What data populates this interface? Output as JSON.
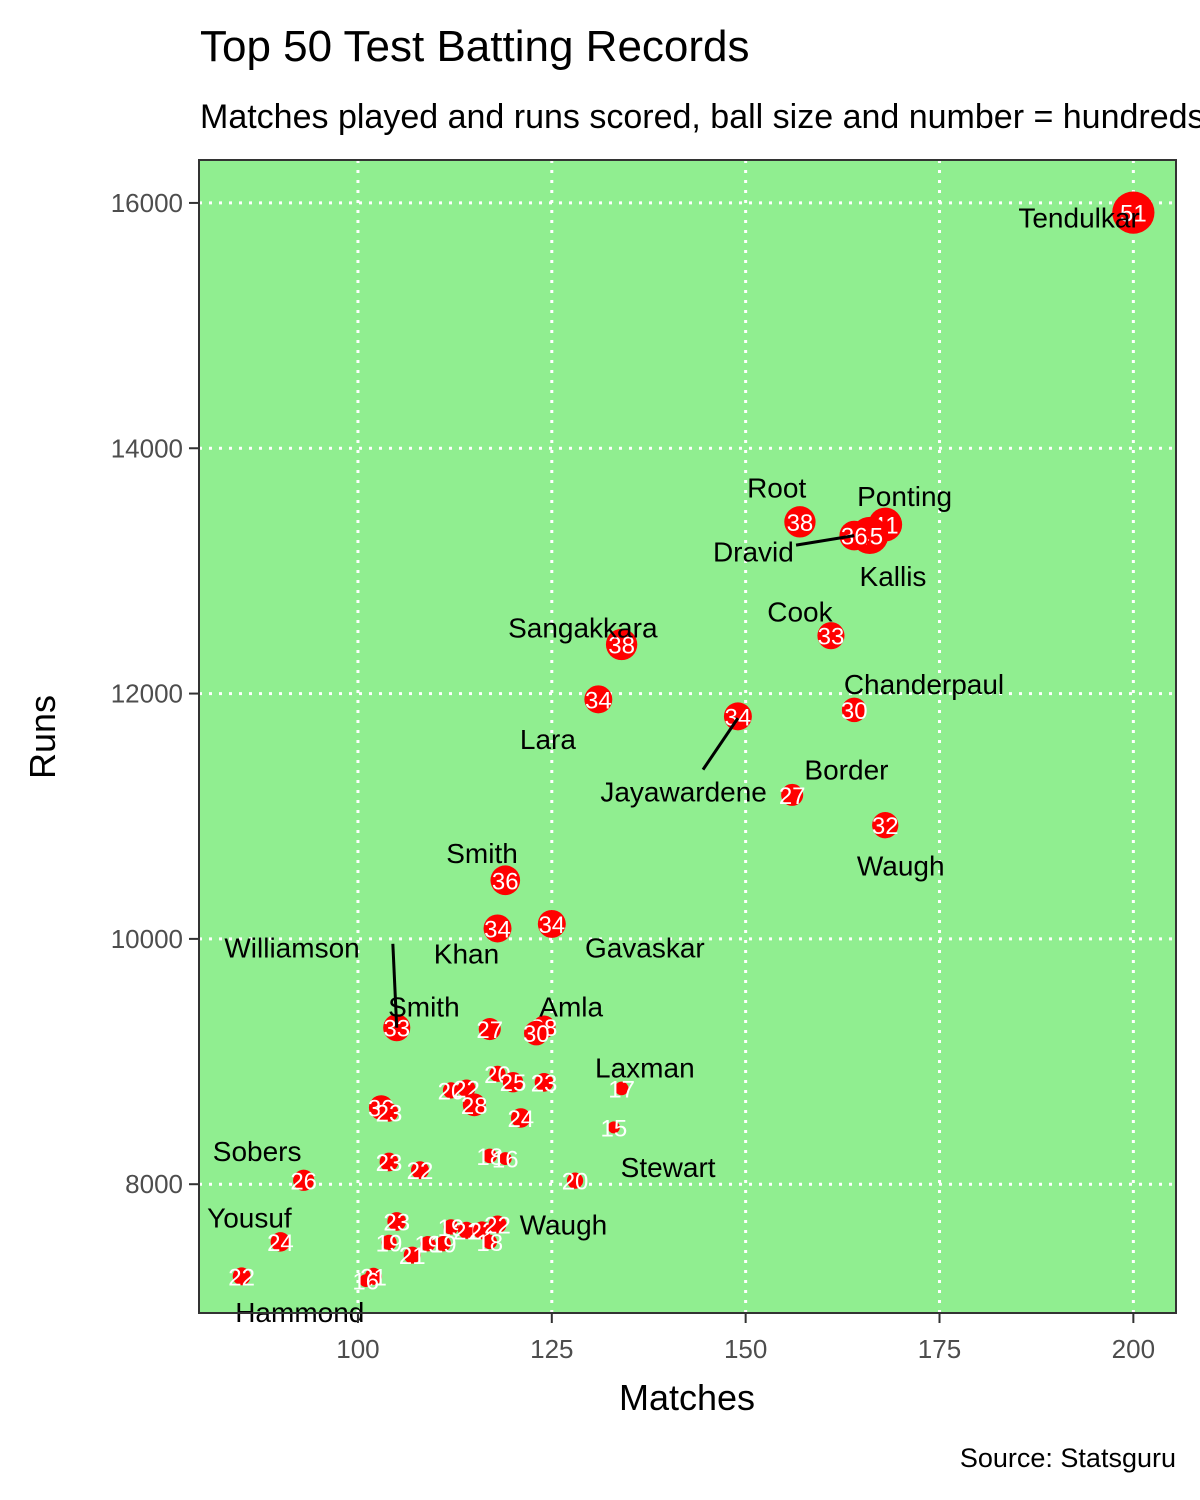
{
  "chart_data": {
    "type": "scatter",
    "title": "Top 50 Test Batting Records",
    "subtitle": "Matches played and runs scored, ball size and number = hundreds",
    "xlabel": "Matches",
    "ylabel": "Runs",
    "caption": "Source: Statsguru",
    "xlim": [
      79.5,
      205.5
    ],
    "ylim": [
      6950,
      16350
    ],
    "xticks": [
      100,
      125,
      150,
      175,
      200
    ],
    "yticks": [
      8000,
      10000,
      12000,
      14000,
      16000
    ],
    "grid": true,
    "colors": {
      "panel": "#90ee90",
      "point": "#ff0000",
      "point_label": "#ffffff",
      "grid": "#ffffff"
    },
    "points": [
      {
        "x": 200,
        "y": 15921,
        "hundreds": 51,
        "name": "Tendulkar"
      },
      {
        "x": 168,
        "y": 13378,
        "hundreds": 41,
        "name": "Ponting"
      },
      {
        "x": 166,
        "y": 13289,
        "hundreds": 45,
        "name": "Kallis"
      },
      {
        "x": 164,
        "y": 13288,
        "hundreds": 36,
        "name": "Dravid"
      },
      {
        "x": 157,
        "y": 13400,
        "hundreds": 38,
        "name": "Root"
      },
      {
        "x": 161,
        "y": 12472,
        "hundreds": 33,
        "name": "Cook"
      },
      {
        "x": 134,
        "y": 12400,
        "hundreds": 38,
        "name": "Sangakkara"
      },
      {
        "x": 131,
        "y": 11953,
        "hundreds": 34,
        "name": "Lara"
      },
      {
        "x": 164,
        "y": 11867,
        "hundreds": 30,
        "name": "Chanderpaul"
      },
      {
        "x": 149,
        "y": 11814,
        "hundreds": 34,
        "name": "Jayawardene"
      },
      {
        "x": 156,
        "y": 11174,
        "hundreds": 27,
        "name": "Border"
      },
      {
        "x": 168,
        "y": 10927,
        "hundreds": 32,
        "name": "Waugh"
      },
      {
        "x": 119,
        "y": 10478,
        "hundreds": 36,
        "name": "Smith"
      },
      {
        "x": 125,
        "y": 10122,
        "hundreds": 34,
        "name": "Gavaskar"
      },
      {
        "x": 118,
        "y": 10085,
        "hundreds": 34,
        "name": "Khan"
      },
      {
        "x": 105,
        "y": 9276,
        "hundreds": 33,
        "name": "Williamson"
      },
      {
        "x": 117,
        "y": 9265,
        "hundreds": 27,
        "name": "Smith"
      },
      {
        "x": 124,
        "y": 9282,
        "hundreds": 28,
        "name": "Amla"
      },
      {
        "x": 123,
        "y": 9232,
        "hundreds": 30,
        "name": ""
      },
      {
        "x": 134,
        "y": 8781,
        "hundreds": 17,
        "name": "Laxman"
      },
      {
        "x": 133,
        "y": 8463,
        "hundreds": 15,
        "name": "Stewart"
      },
      {
        "x": 118,
        "y": 8900,
        "hundreds": 20,
        "name": ""
      },
      {
        "x": 120,
        "y": 8832,
        "hundreds": 25,
        "name": ""
      },
      {
        "x": 124,
        "y": 8830,
        "hundreds": 23,
        "name": ""
      },
      {
        "x": 112,
        "y": 8765,
        "hundreds": 20,
        "name": ""
      },
      {
        "x": 114,
        "y": 8781,
        "hundreds": 22,
        "name": ""
      },
      {
        "x": 115,
        "y": 8647,
        "hundreds": 28,
        "name": ""
      },
      {
        "x": 121,
        "y": 8540,
        "hundreds": 24,
        "name": ""
      },
      {
        "x": 103,
        "y": 8625,
        "hundreds": 30,
        "name": ""
      },
      {
        "x": 104,
        "y": 8586,
        "hundreds": 23,
        "name": ""
      },
      {
        "x": 117,
        "y": 8231,
        "hundreds": 18,
        "name": ""
      },
      {
        "x": 119,
        "y": 8209,
        "hundreds": 16,
        "name": ""
      },
      {
        "x": 104,
        "y": 8181,
        "hundreds": 23,
        "name": ""
      },
      {
        "x": 108,
        "y": 8114,
        "hundreds": 22,
        "name": ""
      },
      {
        "x": 93,
        "y": 8032,
        "hundreds": 26,
        "name": "Sobers"
      },
      {
        "x": 128,
        "y": 8029,
        "hundreds": 20,
        "name": ""
      },
      {
        "x": 105,
        "y": 7696,
        "hundreds": 23,
        "name": ""
      },
      {
        "x": 112,
        "y": 7652,
        "hundreds": 19,
        "name": ""
      },
      {
        "x": 114,
        "y": 7624,
        "hundreds": 21,
        "name": ""
      },
      {
        "x": 116,
        "y": 7624,
        "hundreds": 22,
        "name": ""
      },
      {
        "x": 118,
        "y": 7672,
        "hundreds": 22,
        "name": "Waugh"
      },
      {
        "x": 90,
        "y": 7530,
        "hundreds": 24,
        "name": "Yousuf"
      },
      {
        "x": 104,
        "y": 7525,
        "hundreds": 19,
        "name": ""
      },
      {
        "x": 109,
        "y": 7515,
        "hundreds": 19,
        "name": ""
      },
      {
        "x": 111,
        "y": 7515,
        "hundreds": 19,
        "name": ""
      },
      {
        "x": 107,
        "y": 7422,
        "hundreds": 21,
        "name": ""
      },
      {
        "x": 117,
        "y": 7530,
        "hundreds": 18,
        "name": ""
      },
      {
        "x": 102,
        "y": 7249,
        "hundreds": 21,
        "name": ""
      },
      {
        "x": 101,
        "y": 7214,
        "hundreds": 16,
        "name": ""
      },
      {
        "x": 85,
        "y": 7249,
        "hundreds": 22,
        "name": "Hammond"
      }
    ],
    "label_positions": [
      {
        "name": "Tendulkar",
        "x": 193,
        "y": 15880,
        "anchor": "middle"
      },
      {
        "name": "Ponting",
        "x": 170.5,
        "y": 13610,
        "anchor": "middle"
      },
      {
        "name": "Kallis",
        "x": 169,
        "y": 12960,
        "anchor": "middle"
      },
      {
        "name": "Dravid",
        "x": 151,
        "y": 13160,
        "anchor": "middle",
        "seg": [
          156.5,
          13210,
          164,
          13288
        ]
      },
      {
        "name": "Root",
        "x": 154,
        "y": 13680,
        "anchor": "middle"
      },
      {
        "name": "Cook",
        "x": 157,
        "y": 12670,
        "anchor": "middle"
      },
      {
        "name": "Sangakkara",
        "x": 129,
        "y": 12540,
        "anchor": "middle"
      },
      {
        "name": "Lara",
        "x": 124.5,
        "y": 11630,
        "anchor": "middle"
      },
      {
        "name": "Chanderpaul",
        "x": 173,
        "y": 12080,
        "anchor": "middle"
      },
      {
        "name": "Jayawardene",
        "x": 142,
        "y": 11200,
        "anchor": "middle",
        "seg": [
          144.5,
          11380,
          149,
          11800
        ]
      },
      {
        "name": "Border",
        "x": 163,
        "y": 11380,
        "anchor": "middle"
      },
      {
        "name": "Waugh",
        "x": 170,
        "y": 10600,
        "anchor": "middle"
      },
      {
        "name": "Smith",
        "x": 116,
        "y": 10700,
        "anchor": "middle"
      },
      {
        "name": "Gavaskar",
        "x": 137,
        "y": 9930,
        "anchor": "middle"
      },
      {
        "name": "Khan",
        "x": 114,
        "y": 9880,
        "anchor": "middle"
      },
      {
        "name": "Williamson",
        "x": 91.5,
        "y": 9930,
        "anchor": "middle",
        "seg": [
          104.5,
          9960,
          105,
          9276
        ]
      },
      {
        "name": "Smith",
        "x": 108.5,
        "y": 9450,
        "anchor": "middle"
      },
      {
        "name": "Amla",
        "x": 127.5,
        "y": 9450,
        "anchor": "middle"
      },
      {
        "name": "Laxman",
        "x": 137,
        "y": 8950,
        "anchor": "middle"
      },
      {
        "name": "Stewart",
        "x": 140,
        "y": 8140,
        "anchor": "middle"
      },
      {
        "name": "Sobers",
        "x": 87,
        "y": 8270,
        "anchor": "middle"
      },
      {
        "name": "Waugh",
        "x": 126.5,
        "y": 7670,
        "anchor": "middle"
      },
      {
        "name": "Yousuf",
        "x": 86,
        "y": 7730,
        "anchor": "middle"
      },
      {
        "name": "Hammond",
        "x": 92.5,
        "y": 6960,
        "anchor": "middle"
      }
    ]
  }
}
